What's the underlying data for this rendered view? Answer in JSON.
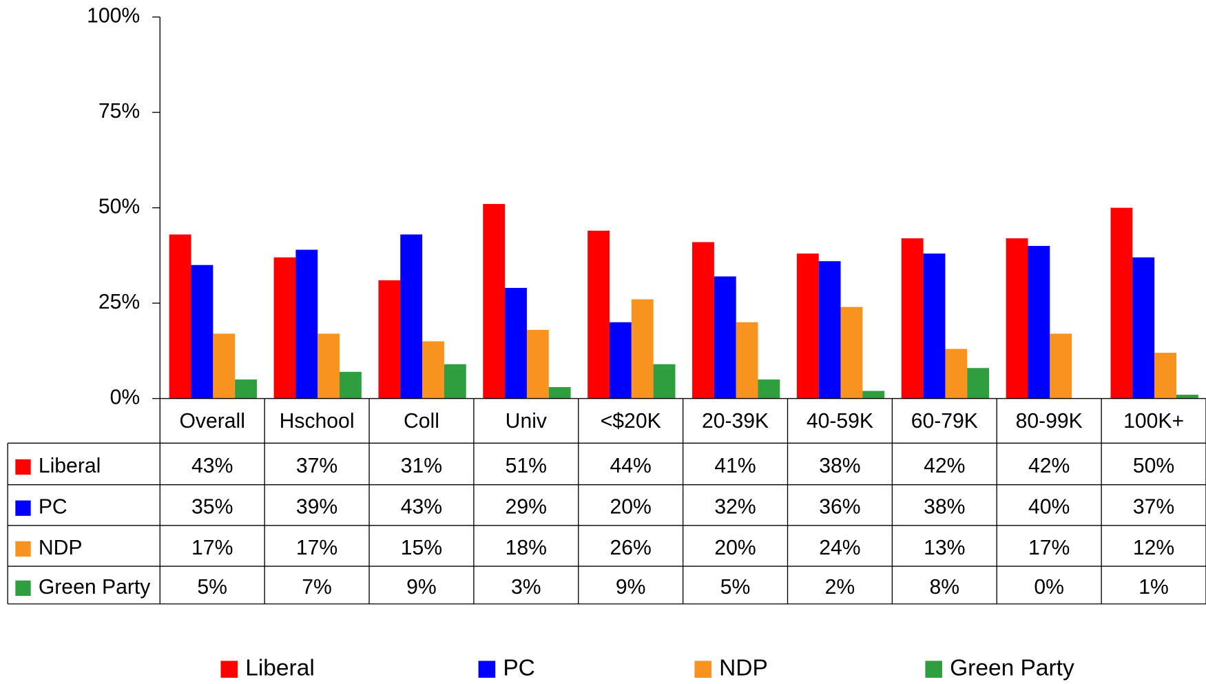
{
  "chart_data": {
    "type": "bar",
    "categories": [
      "Overall",
      "Hschool",
      "Coll",
      "Univ",
      "<$20K",
      "20-39K",
      "40-59K",
      "60-79K",
      "80-99K",
      "100K+"
    ],
    "series": [
      {
        "name": "Liberal",
        "color": "#ff0000",
        "values": [
          43,
          37,
          31,
          51,
          44,
          41,
          38,
          42,
          42,
          50
        ],
        "value_labels": [
          "43%",
          "37%",
          "31%",
          "51%",
          "44%",
          "41%",
          "38%",
          "42%",
          "42%",
          "50%"
        ]
      },
      {
        "name": "PC",
        "color": "#0000ff",
        "values": [
          35,
          39,
          43,
          29,
          20,
          32,
          36,
          38,
          40,
          37
        ],
        "value_labels": [
          "35%",
          "39%",
          "43%",
          "29%",
          "20%",
          "32%",
          "36%",
          "38%",
          "40%",
          "37%"
        ]
      },
      {
        "name": "NDP",
        "color": "#f7931e",
        "values": [
          17,
          17,
          15,
          18,
          26,
          20,
          24,
          13,
          17,
          12
        ],
        "value_labels": [
          "17%",
          "17%",
          "15%",
          "18%",
          "26%",
          "20%",
          "24%",
          "13%",
          "17%",
          "12%"
        ]
      },
      {
        "name": "Green Party",
        "color": "#2f9e3f",
        "values": [
          5,
          7,
          9,
          3,
          9,
          5,
          2,
          8,
          0,
          1
        ],
        "value_labels": [
          "5%",
          "7%",
          "9%",
          "3%",
          "9%",
          "5%",
          "2%",
          "8%",
          "0%",
          "1%"
        ]
      }
    ],
    "ylim": [
      0,
      100
    ],
    "yticks": [
      {
        "value": 0,
        "label": "0%"
      },
      {
        "value": 25,
        "label": "25%"
      },
      {
        "value": 50,
        "label": "50%"
      },
      {
        "value": 75,
        "label": "75%"
      },
      {
        "value": 100,
        "label": "100%"
      }
    ],
    "legend": "bottom"
  }
}
